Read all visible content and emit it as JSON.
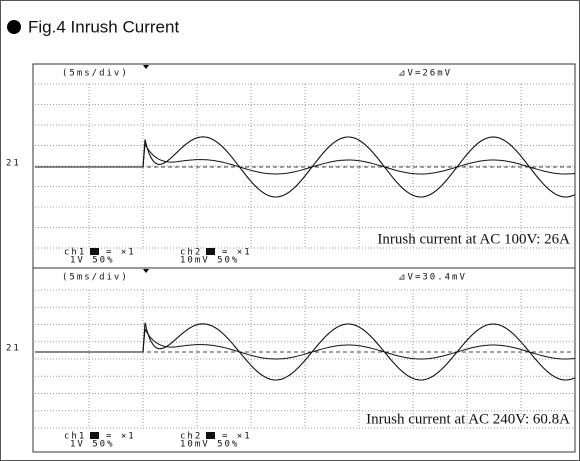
{
  "title": "Fig.4  Inrush Current",
  "panels": [
    {
      "timebase": "(5ms/div)",
      "delta": "⊿V=26mV",
      "marker": "21",
      "caption": "Inrush current at AC 100V: 26A",
      "ch1": {
        "label": "ch1",
        "coupling": "= ×1",
        "scale": "1V  50%"
      },
      "ch2": {
        "label": "ch2",
        "coupling": "= ×1",
        "scale": "10mV  50%"
      }
    },
    {
      "timebase": "(5ms/div)",
      "delta": "⊿V=30.4mV",
      "marker": "21",
      "caption": "Inrush current at AC 240V: 60.8A",
      "ch1": {
        "label": "ch1",
        "coupling": "= ×1",
        "scale": "1V  50%"
      },
      "ch2": {
        "label": "ch2",
        "coupling": "= ×1",
        "scale": "10mV  50%"
      }
    }
  ]
}
